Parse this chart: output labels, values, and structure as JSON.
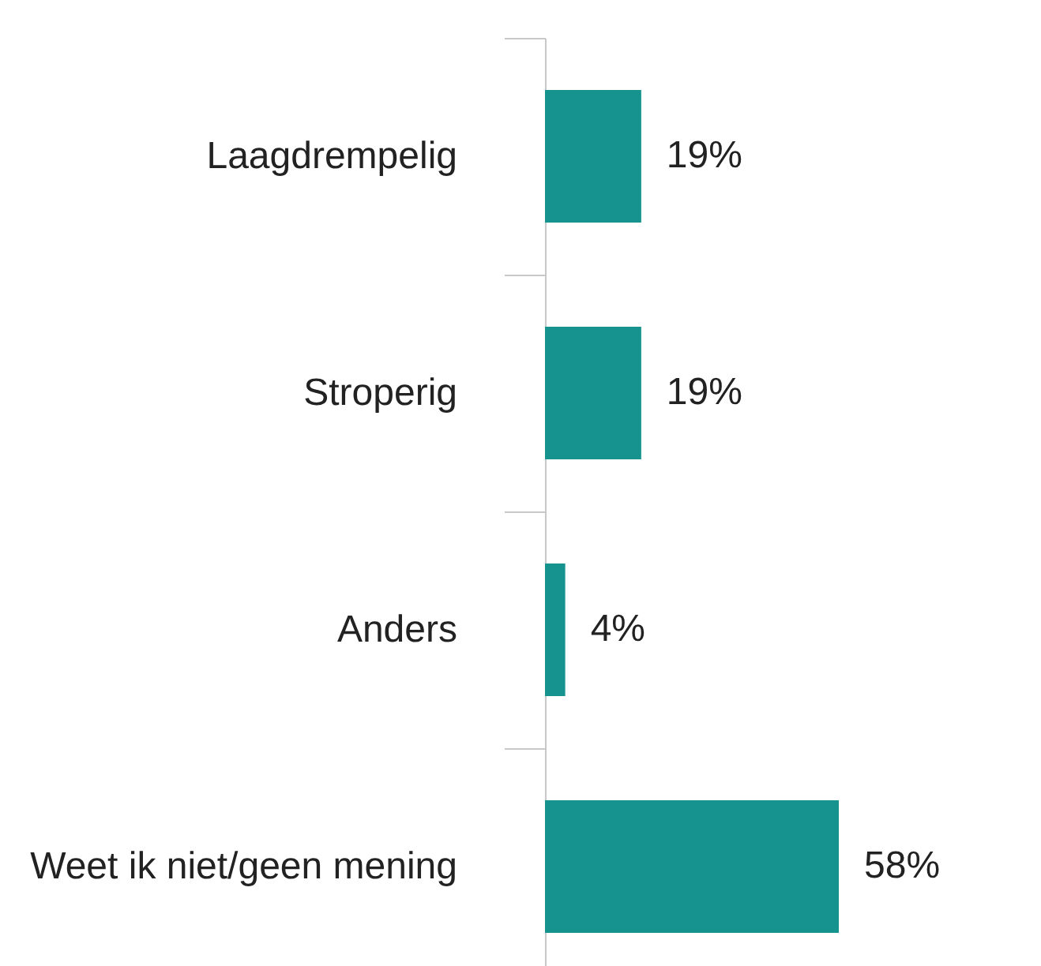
{
  "chart_data": {
    "type": "bar",
    "orientation": "horizontal",
    "categories": [
      "Laagdrempelig",
      "Stroperig",
      "Anders",
      "Weet ik niet/geen mening"
    ],
    "values": [
      19,
      19,
      4,
      58
    ],
    "color": "#16938f",
    "value_labels": [
      "19%",
      "19%",
      "4%",
      "58%"
    ]
  }
}
